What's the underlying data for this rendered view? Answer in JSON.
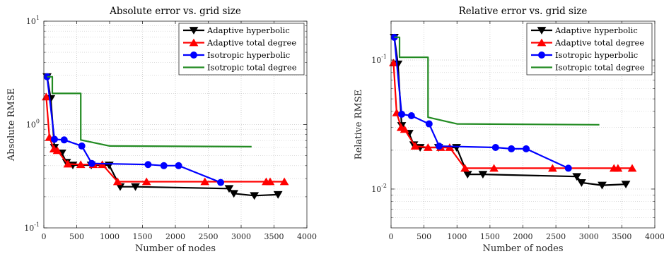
{
  "chart_data": [
    {
      "type": "line",
      "title": "Absolute error vs. grid size",
      "xlabel": "Number of nodes",
      "ylabel": "Absolute RMSE",
      "xlim": [
        0,
        4000
      ],
      "ylim": [
        0.1,
        10
      ],
      "yscale": "log",
      "grid": true,
      "legend_position": "top-right",
      "x_tick_labels": [
        "0",
        "500",
        "1000",
        "1500",
        "2000",
        "2500",
        "3000",
        "3500",
        "4000"
      ],
      "y_tick_labels": [
        {
          "mantissa": "10",
          "exponent": "-1",
          "value": 0.1
        },
        {
          "mantissa": "10",
          "exponent": "0",
          "value": 1
        },
        {
          "mantissa": "10",
          "exponent": "1",
          "value": 10
        }
      ],
      "series": [
        {
          "name": "Adaptive hyperbolic",
          "color": "#000000",
          "marker": "triangle-down",
          "x": [
            49,
            105,
            161,
            273,
            345,
            441,
            721,
            993,
            1161,
            1393,
            2817,
            2889,
            3201,
            3561
          ],
          "y": [
            2.9,
            1.78,
            0.6,
            0.53,
            0.43,
            0.405,
            0.405,
            0.405,
            0.25,
            0.25,
            0.24,
            0.215,
            0.205,
            0.21
          ]
        },
        {
          "name": "Adaptive total degree",
          "color": "#ff0000",
          "marker": "triangle-up",
          "x": [
            37,
            85,
            153,
            205,
            365,
            561,
            753,
            889,
            1121,
            1561,
            2449,
            3381,
            3441,
            3657
          ],
          "y": [
            1.85,
            0.75,
            0.58,
            0.56,
            0.415,
            0.41,
            0.41,
            0.41,
            0.28,
            0.28,
            0.28,
            0.28,
            0.28,
            0.28
          ]
        },
        {
          "name": "Isotropic hyperbolic",
          "color": "#0000ff",
          "marker": "circle",
          "x": [
            49,
            161,
            309,
            577,
            729,
            1585,
            1825,
            2049,
            2689
          ],
          "y": [
            2.9,
            0.72,
            0.71,
            0.62,
            0.42,
            0.41,
            0.4,
            0.4,
            0.275
          ]
        },
        {
          "name": "Isotropic total degree",
          "color": "#228b22",
          "marker": "none",
          "x": [
            49,
            129,
            129,
            281,
            281,
            561,
            561,
            1001,
            1001,
            3159
          ],
          "y": [
            2.9,
            2.9,
            2.0,
            2.0,
            2.0,
            2.0,
            0.71,
            0.62,
            0.62,
            0.61
          ]
        }
      ]
    },
    {
      "type": "line",
      "title": "Relative error vs. grid size",
      "xlabel": "Number of nodes",
      "ylabel": "Relative RMSE",
      "xlim": [
        0,
        4000
      ],
      "ylim": [
        0.005,
        0.2
      ],
      "yscale": "log",
      "grid": true,
      "legend_position": "top-right",
      "x_tick_labels": [
        "0",
        "500",
        "1000",
        "1500",
        "2000",
        "2500",
        "3000",
        "3500",
        "4000"
      ],
      "y_tick_labels": [
        {
          "mantissa": "10",
          "exponent": "-2",
          "value": 0.01
        },
        {
          "mantissa": "10",
          "exponent": "-1",
          "value": 0.1
        }
      ],
      "series": [
        {
          "name": "Adaptive hyperbolic",
          "color": "#000000",
          "marker": "triangle-down",
          "x": [
            49,
            105,
            161,
            273,
            345,
            441,
            721,
            993,
            1161,
            1393,
            2817,
            2889,
            3201,
            3561
          ],
          "y": [
            0.15,
            0.093,
            0.031,
            0.027,
            0.022,
            0.021,
            0.021,
            0.021,
            0.013,
            0.013,
            0.0125,
            0.0112,
            0.0107,
            0.0109
          ]
        },
        {
          "name": "Adaptive total degree",
          "color": "#ff0000",
          "marker": "triangle-up",
          "x": [
            37,
            85,
            153,
            205,
            365,
            561,
            753,
            889,
            1121,
            1561,
            2449,
            3381,
            3441,
            3657
          ],
          "y": [
            0.095,
            0.039,
            0.03,
            0.029,
            0.0215,
            0.021,
            0.021,
            0.021,
            0.0145,
            0.0145,
            0.0145,
            0.0145,
            0.0145,
            0.0145
          ]
        },
        {
          "name": "Isotropic hyperbolic",
          "color": "#0000ff",
          "marker": "circle",
          "x": [
            49,
            161,
            309,
            577,
            729,
            1585,
            1825,
            2049,
            2689
          ],
          "y": [
            0.15,
            0.038,
            0.037,
            0.032,
            0.0215,
            0.021,
            0.0205,
            0.0205,
            0.0145
          ]
        },
        {
          "name": "Isotropic total degree",
          "color": "#228b22",
          "marker": "none",
          "x": [
            49,
            129,
            129,
            281,
            281,
            561,
            561,
            1001,
            1001,
            3159
          ],
          "y": [
            0.15,
            0.15,
            0.105,
            0.105,
            0.105,
            0.105,
            0.036,
            0.032,
            0.032,
            0.0315
          ]
        }
      ]
    }
  ]
}
